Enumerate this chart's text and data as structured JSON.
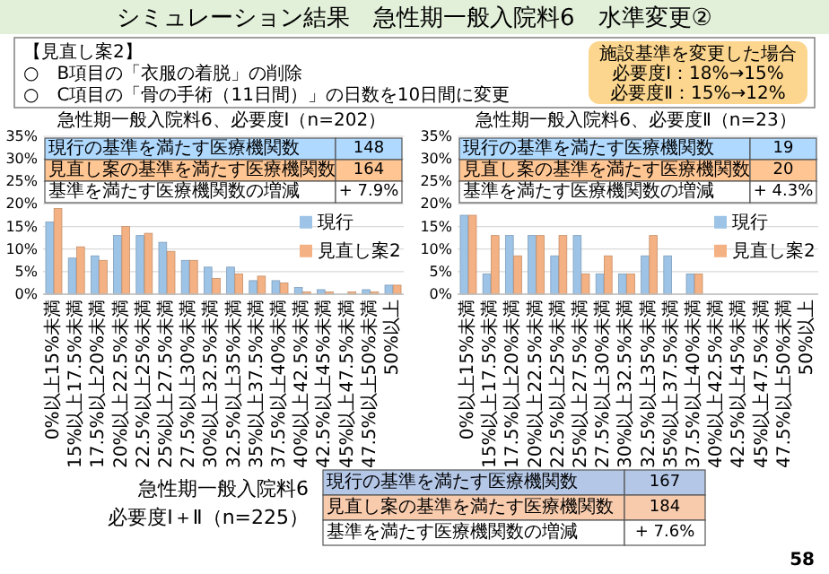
{
  "chart_data": [
    {
      "type": "other",
      "title": "シミュレーション結果　急性期一般入院料6　水準変更②",
      "annotations": [
        "【見直し案2】",
        "○　B項目の「衣服の着脱」の削除",
        "○　C項目の「骨の手術（11日間）」の日数を10日間に変更",
        "施設基準を変更した場合",
        "必要度Ⅰ：18%→15%",
        "必要度Ⅱ：15%→12%"
      ]
    },
    {
      "type": "bar",
      "title": "急性期一般入院料6、必要度Ⅰ（n=202）",
      "categories": [
        "0%以上15%未満",
        "15%以上17.5%未満",
        "17.5%以上20%未満",
        "20%以上22.5%未満",
        "22.5%以上25%未満",
        "25%以上27.5%未満",
        "27.5%以上30%未満",
        "30%以上32.5%未満",
        "32.5%以上35%未満",
        "35%以上37.5%未満",
        "37.5%以上40%未満",
        "40%以上42.5%未満",
        "42.5%以上45%未満",
        "45%以上47.5%未満",
        "47.5%以上50%未満",
        "50%以上"
      ],
      "series": [
        {
          "name": "現行",
          "color": "#9dc3e6",
          "values": [
            16,
            8,
            8.5,
            13,
            13,
            11.5,
            7.5,
            6,
            6,
            3,
            3,
            1.5,
            1,
            0,
            1,
            2
          ]
        },
        {
          "name": "見直し案2",
          "color": "#f4b183",
          "values": [
            19,
            10.5,
            7.5,
            15,
            13.5,
            9.5,
            7.5,
            3.5,
            4.5,
            4,
            2.5,
            0.5,
            0.5,
            0.5,
            0.5,
            2
          ]
        }
      ],
      "ylim": [
        0,
        35
      ],
      "yticks": [
        {
          "value": 0,
          "label": "0%"
        },
        {
          "value": 5,
          "label": "5%"
        },
        {
          "value": 10,
          "label": "10%"
        },
        {
          "value": 15,
          "label": "15%"
        },
        {
          "value": 20,
          "label": "20%"
        },
        {
          "value": 25,
          "label": "25%"
        },
        {
          "value": 30,
          "label": "30%"
        },
        {
          "value": 35,
          "label": "35%"
        }
      ],
      "grid": "y",
      "legend": "right",
      "annotations": [
        "現行の基準を満たす医療機関数",
        "148",
        "見直し案の基準を満たす医療機関数",
        "164",
        "基準を満たす医療機関数の増減",
        "+ 7.9%"
      ]
    },
    {
      "type": "bar",
      "title": "急性期一般入院料6、必要度Ⅱ（n=23）",
      "categories": [
        "0%以上15%未満",
        "15%以上17.5%未満",
        "17.5%以上20%未満",
        "20%以上22.5%未満",
        "22.5%以上25%未満",
        "25%以上27.5%未満",
        "27.5%以上30%未満",
        "30%以上32.5%未満",
        "32.5%以上35%未満",
        "35%以上37.5%未満",
        "37.5%以上40%未満",
        "40%以上42.5%未満",
        "42.5%以上45%未満",
        "45%以上47.5%未満",
        "47.5%以上50%未満",
        "50%以上"
      ],
      "series": [
        {
          "name": "現行",
          "color": "#9dc3e6",
          "values": [
            17.5,
            4.5,
            13,
            13,
            8.5,
            13,
            4.5,
            4.5,
            8.5,
            8.5,
            4.5,
            0,
            0,
            0,
            0,
            0
          ]
        },
        {
          "name": "見直し案2",
          "color": "#f4b183",
          "values": [
            17.5,
            13,
            8.5,
            13,
            13,
            4.5,
            8.5,
            4.5,
            13,
            0,
            4.5,
            0,
            0,
            0,
            0,
            0
          ]
        }
      ],
      "ylim": [
        0,
        35
      ],
      "yticks": [
        {
          "value": 0,
          "label": "0%"
        },
        {
          "value": 5,
          "label": "5%"
        },
        {
          "value": 10,
          "label": "10%"
        },
        {
          "value": 15,
          "label": "15%"
        },
        {
          "value": 20,
          "label": "20%"
        },
        {
          "value": 25,
          "label": "25%"
        },
        {
          "value": 30,
          "label": "30%"
        },
        {
          "value": 35,
          "label": "35%"
        }
      ],
      "grid": "y",
      "legend": "right",
      "annotations": [
        "現行の基準を満たす医療機関数",
        "19",
        "見直し案の基準を満たす医療機関数",
        "20",
        "基準を満たす医療機関数の増減",
        "+ 4.3%"
      ]
    },
    {
      "type": "other",
      "title": "急性期一般入院料6",
      "subtitle": "必要度Ⅰ＋Ⅱ（n=225）",
      "annotations": [
        "現行の基準を満たす医療機関数",
        "167",
        "見直し案の基準を満たす医療機関数",
        "184",
        "基準を満たす医療機関数の増減",
        "+ 7.6%",
        "58"
      ]
    }
  ]
}
